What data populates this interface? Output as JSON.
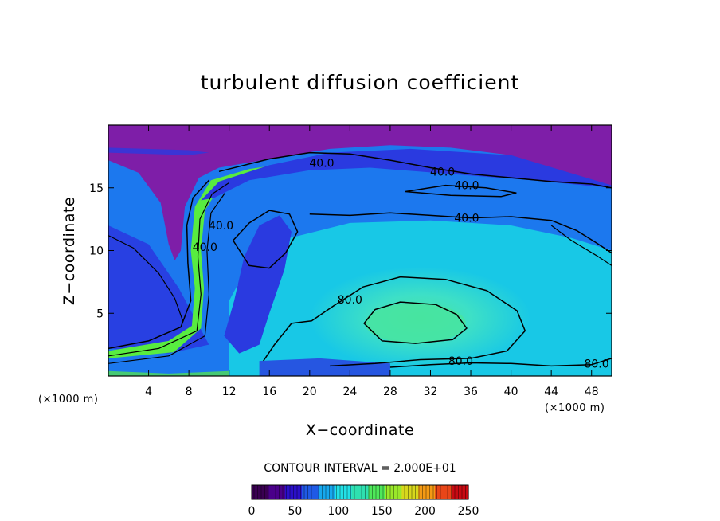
{
  "chart_data": {
    "type": "heatmap",
    "title": "turbulent diffusion coefficient",
    "xlabel": "X−coordinate",
    "ylabel": "Z−coordinate",
    "x_unit": "(×1000 m)",
    "z_unit": "(×1000 m)",
    "xlim": [
      0,
      50
    ],
    "ylim": [
      0,
      20
    ],
    "x_ticks": [
      4,
      8,
      12,
      16,
      20,
      24,
      28,
      32,
      36,
      40,
      44,
      48
    ],
    "y_ticks": [
      5,
      10,
      15
    ],
    "contour_interval_text": "CONTOUR INTERVAL = 2.000E+01",
    "contour_interval": 20,
    "contour_labels": [
      {
        "text": "40.0",
        "x": 21.2,
        "z": 17.0
      },
      {
        "text": "40.0",
        "x": 33.2,
        "z": 16.3
      },
      {
        "text": "40.0",
        "x": 35.6,
        "z": 15.2
      },
      {
        "text": "40.0",
        "x": 35.6,
        "z": 12.6
      },
      {
        "text": "40.0",
        "x": 11.2,
        "z": 12.0
      },
      {
        "text": "40.0",
        "x": 9.6,
        "z": 10.3
      },
      {
        "text": "80.0",
        "x": 24.0,
        "z": 6.1
      },
      {
        "text": "80.0",
        "x": 35.0,
        "z": 1.2
      },
      {
        "text": "80.0",
        "x": 48.5,
        "z": 1.0
      }
    ],
    "colorbar": {
      "min": 0,
      "max": 250,
      "ticks": [
        0,
        50,
        100,
        150,
        200,
        250
      ],
      "colors": [
        "#3a0052",
        "#4a008a",
        "#2a10c8",
        "#1f5ae6",
        "#16a8ee",
        "#22e0e6",
        "#2ee0b0",
        "#4ee85a",
        "#9ae82a",
        "#d8d81c",
        "#f49a14",
        "#e84618",
        "#c80a12"
      ]
    },
    "palette": {
      "top_layer": "#7e1ea8",
      "deep_blue": "#2a3ae0",
      "mid_blue": "#1c78ee",
      "cyan": "#18c8e6",
      "aqua": "#3ee0c6",
      "core": "#48e4a0",
      "green_band": "#58ec40"
    },
    "grid": false,
    "legend": "bottom-center colorbar"
  }
}
